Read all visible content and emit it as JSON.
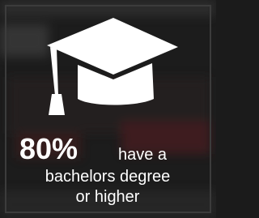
{
  "stat": "80%",
  "stat_suffix": "have a",
  "line2": "bachelors degree",
  "line3": "or higher"
}
